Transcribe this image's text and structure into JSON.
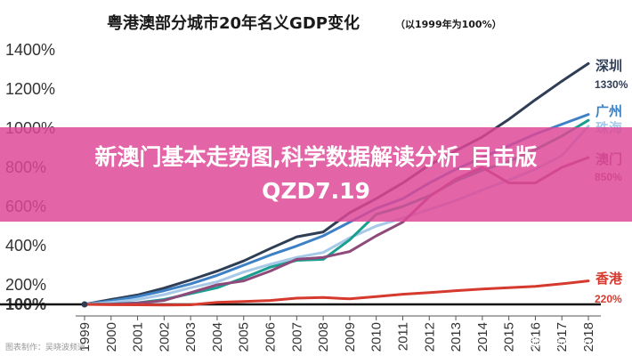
{
  "chart_data": {
    "type": "line",
    "title": "粤港澳部分城市20年名义GDP变化",
    "subtitle": "（以1999年为100%）",
    "x": [
      "1999",
      "2000",
      "2001",
      "2002",
      "2003",
      "2004",
      "2005",
      "2006",
      "2007",
      "2008",
      "2009",
      "2010",
      "2011",
      "2012",
      "2013",
      "2014",
      "2015",
      "2016",
      "2017",
      "2018"
    ],
    "yticks": [
      "100%",
      "200%",
      "400%",
      "600%",
      "800%",
      "1000%",
      "1200%",
      "1400%"
    ],
    "ylim": [
      0,
      1450
    ],
    "series": [
      {
        "name": "深圳",
        "end_label": "1330%",
        "color": "#2f3e55",
        "values": [
          100,
          125,
          148,
          183,
          225,
          270,
          322,
          385,
          445,
          470,
          568,
          640,
          720,
          812,
          885,
          955,
          1045,
          1145,
          1240,
          1330
        ]
      },
      {
        "name": "广州",
        "end_label": "",
        "color": "#3e80c5",
        "values": [
          100,
          118,
          140,
          170,
          205,
          248,
          300,
          352,
          398,
          450,
          520,
          590,
          640,
          720,
          790,
          850,
          910,
          970,
          1020,
          1070
        ]
      },
      {
        "name": "珠海",
        "end_label": "",
        "color": "#a7c9e8",
        "values": [
          100,
          110,
          125,
          150,
          185,
          215,
          265,
          305,
          340,
          365,
          440,
          500,
          540,
          585,
          630,
          685,
          735,
          790,
          860,
          1010
        ]
      },
      {
        "name": "",
        "end_label": "",
        "color": "#1a9e8f",
        "values": [
          100,
          102,
          108,
          125,
          155,
          185,
          235,
          290,
          325,
          330,
          430,
          560,
          600,
          655,
          730,
          785,
          830,
          890,
          960,
          1040
        ]
      },
      {
        "name": "澳门",
        "end_label": "850%",
        "color": "#8e4a7a",
        "values": [
          100,
          101,
          107,
          120,
          160,
          200,
          220,
          270,
          330,
          340,
          370,
          450,
          520,
          650,
          740,
          800,
          720,
          720,
          800,
          850
        ]
      },
      {
        "name": "香港",
        "end_label": "220%",
        "color": "#d63a2f",
        "values": [
          100,
          97,
          96,
          94,
          96,
          110,
          115,
          120,
          132,
          135,
          128,
          140,
          152,
          160,
          170,
          178,
          185,
          192,
          205,
          220
        ]
      }
    ],
    "grid": false,
    "legend": "end-of-line labels"
  },
  "banner": {
    "line1": "新澳门基本走势图,科学数据解读分析_目击版",
    "line2": "QZD7.19"
  },
  "footer": {
    "source": "图表制作：吴晓波频道",
    "watermark": "搜狐号@Amazing"
  }
}
